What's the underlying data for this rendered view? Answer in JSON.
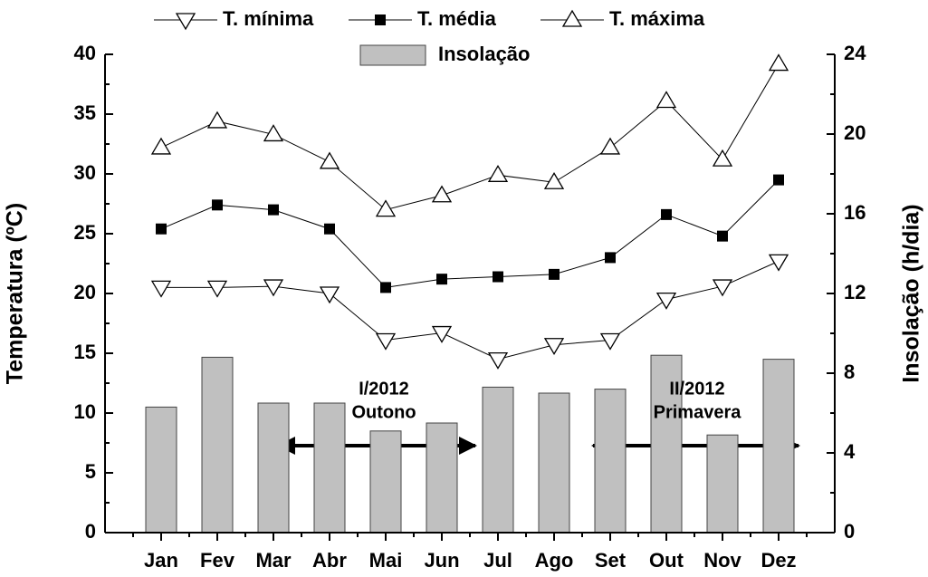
{
  "chart_data": {
    "type": "combo",
    "categories": [
      "Jan",
      "Fev",
      "Mar",
      "Abr",
      "Mai",
      "Jun",
      "Jul",
      "Ago",
      "Set",
      "Out",
      "Nov",
      "Dez"
    ],
    "series": [
      {
        "name": "T. mínima",
        "type": "line",
        "marker": "triangle-down",
        "color": "#000000",
        "axis": "y",
        "values": [
          20.5,
          20.5,
          20.6,
          20.0,
          16.1,
          16.7,
          14.5,
          15.7,
          16.1,
          19.5,
          20.6,
          22.7
        ]
      },
      {
        "name": "T. média",
        "type": "line",
        "marker": "square",
        "color": "#000000",
        "axis": "y",
        "values": [
          25.4,
          27.4,
          27.0,
          25.4,
          20.5,
          21.2,
          21.4,
          21.6,
          23.0,
          26.6,
          24.8,
          29.5
        ]
      },
      {
        "name": "T. máxima",
        "type": "line",
        "marker": "triangle-up",
        "color": "#000000",
        "axis": "y",
        "values": [
          32.2,
          34.4,
          33.3,
          31.0,
          27.0,
          28.2,
          29.9,
          29.3,
          32.2,
          36.1,
          31.2,
          39.2
        ]
      },
      {
        "name": "Insolação",
        "type": "bar",
        "color": "#c0c0c0",
        "axis": "y2",
        "values": [
          6.3,
          8.8,
          6.5,
          6.5,
          5.1,
          5.5,
          7.3,
          7.0,
          7.2,
          8.9,
          4.9,
          8.7
        ]
      }
    ],
    "ylabel": "Temperatura (ºC)",
    "y2label": "Insolação (h/dia)",
    "ylim": [
      0,
      40
    ],
    "yticks": [
      0,
      5,
      10,
      15,
      20,
      25,
      30,
      35,
      40
    ],
    "y2lim": [
      0,
      24
    ],
    "y2ticks": [
      0,
      4,
      8,
      12,
      16,
      20,
      24
    ],
    "annotations": [
      [
        "I/2012",
        "Outono"
      ],
      [
        "II/2012",
        "Primavera"
      ]
    ]
  }
}
